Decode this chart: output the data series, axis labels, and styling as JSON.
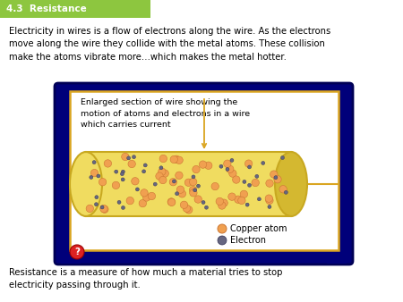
{
  "title": "4.3  Resistance",
  "title_bg": "#8dc63f",
  "title_color": "white",
  "bg_color": "white",
  "body_text": "Electricity in wires is a flow of electrons along the wire. As the electrons\nmove along the wire they collide with the metal atoms. These collision\nmake the atoms vibrate more…which makes the metal hotter.",
  "bottom_text": "Resistance is a measure of how much a material tries to stop\nelectricity passing through it.",
  "diagram_bg": "#00007A",
  "inner_box_bg": "white",
  "inner_box_border": "#DAA520",
  "cylinder_color": "#F0DC60",
  "cylinder_shade": "#C8A820",
  "cylinder_right": "#D4B830",
  "caption": "Enlarged section of wire showing the\nmotion of atoms and electrons in a wire\nwhich carries current",
  "copper_color": "#F0A050",
  "copper_edge": "#CC7733",
  "electron_color": "#666680",
  "electron_edge": "#333355",
  "copper_atom_label": "Copper atom",
  "electron_label": "Electron",
  "arrow_color": "#DAA520",
  "q_bg": "#DD2222",
  "q_color": "white"
}
